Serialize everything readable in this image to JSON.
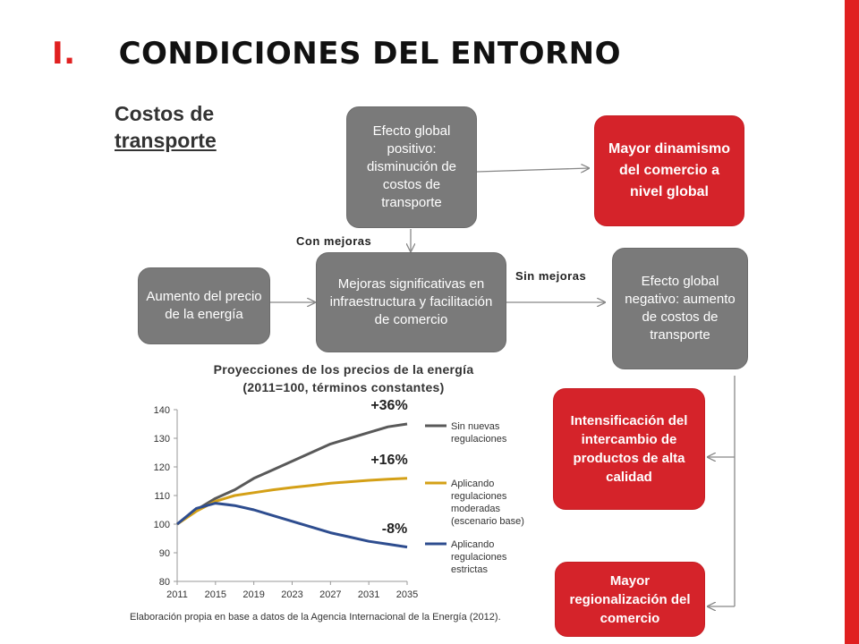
{
  "header": {
    "number": "I.",
    "title": "CONDICIONES DEL ENTORNO"
  },
  "subtitle": {
    "line1": "Costos de",
    "line2": "transporte"
  },
  "diagram": {
    "box_top": "Efecto global positivo: disminución de costos de transporte",
    "box_mayor_dinamismo": "Mayor dinamismo del comercio a nivel global",
    "box_aumento": "Aumento del precio de la energía",
    "box_mejoras": "Mejoras significativas en infraestructura y facilitación de comercio",
    "box_negativo": "Efecto global negativo: aumento de costos de transporte",
    "box_intensificacion": "Intensificación del intercambio de productos de alta calidad",
    "box_regionalizacion": "Mayor regionalización del comercio",
    "label_con": "Con mejoras",
    "label_sin": "Sin mejoras"
  },
  "chart_title": {
    "line1": "Proyecciones  de los precios  de la energía",
    "line2": "(2011=100,  términos  constantes)"
  },
  "source": "Elaboración propia en base a datos de la Agencia Internacional de la Energía (2012).",
  "colors": {
    "accent_red": "#d5232a",
    "bar_red": "#e02020",
    "box_gray": "#7a7a7a",
    "series1": "#595959",
    "series2": "#d4a017",
    "series3": "#2e4d8f"
  },
  "chart_data": {
    "type": "line",
    "x": [
      2011,
      2013,
      2015,
      2017,
      2019,
      2021,
      2023,
      2025,
      2027,
      2029,
      2031,
      2033,
      2035
    ],
    "x_ticks": [
      "2011",
      "2015",
      "2019",
      "2023",
      "2027",
      "2031",
      "2035"
    ],
    "y_ticks": [
      "80",
      "90",
      "100",
      "110",
      "120",
      "130",
      "140"
    ],
    "ylim": [
      80,
      140
    ],
    "xlim": [
      2011,
      2035
    ],
    "grid": false,
    "legend_position": "right",
    "series": [
      {
        "name": "Sin nuevas regulaciones",
        "legend_lines": [
          "Sin nuevas",
          "regulaciones"
        ],
        "values": [
          100,
          105,
          109,
          112,
          116,
          119,
          122,
          125,
          128,
          130,
          132,
          134,
          135
        ]
      },
      {
        "name": "Aplicando regulaciones moderadas (escenario base)",
        "legend_lines": [
          "Aplicando",
          "regulaciones",
          "moderadas",
          "(escenario base)"
        ],
        "values": [
          100,
          104.5,
          108,
          110,
          111,
          112,
          112.8,
          113.5,
          114.3,
          114.8,
          115.3,
          115.7,
          116
        ]
      },
      {
        "name": "Aplicando regulaciones estrictas",
        "legend_lines": [
          "Aplicando",
          "regulaciones",
          "estrictas"
        ],
        "values": [
          100,
          105.5,
          107.3,
          106.5,
          105,
          103,
          101,
          99,
          97,
          95.5,
          94,
          93,
          92
        ]
      }
    ],
    "annotations": [
      "+36%",
      "+16%",
      "-8%"
    ]
  }
}
